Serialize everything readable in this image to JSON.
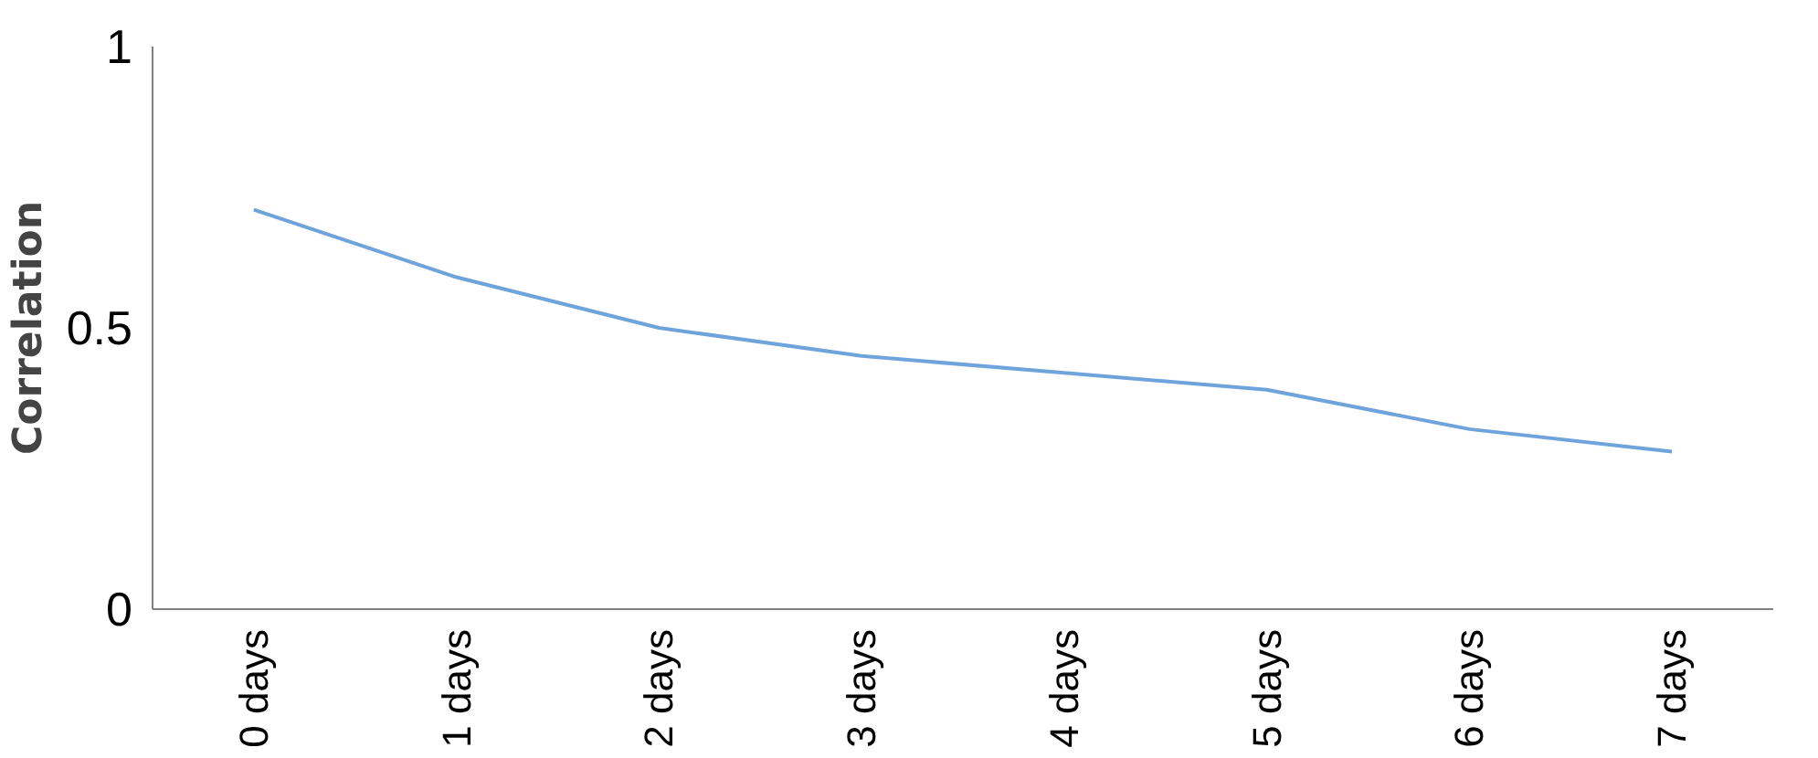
{
  "chart_data": {
    "type": "line",
    "ylabel": "Correlation",
    "categories": [
      "0 days",
      "1 days",
      "2 days",
      "3 days",
      "4 days",
      "5 days",
      "6 days",
      "7 days"
    ],
    "series": [
      {
        "color": "#6fa3dc",
        "values": [
          0.71,
          0.59,
          0.5,
          0.45,
          0.42,
          0.39,
          0.32,
          0.28
        ]
      }
    ],
    "ylim": [
      0,
      1
    ],
    "yticks": [
      0,
      0.5,
      1
    ],
    "grid": false,
    "marker": "none",
    "line_style": "solid"
  }
}
